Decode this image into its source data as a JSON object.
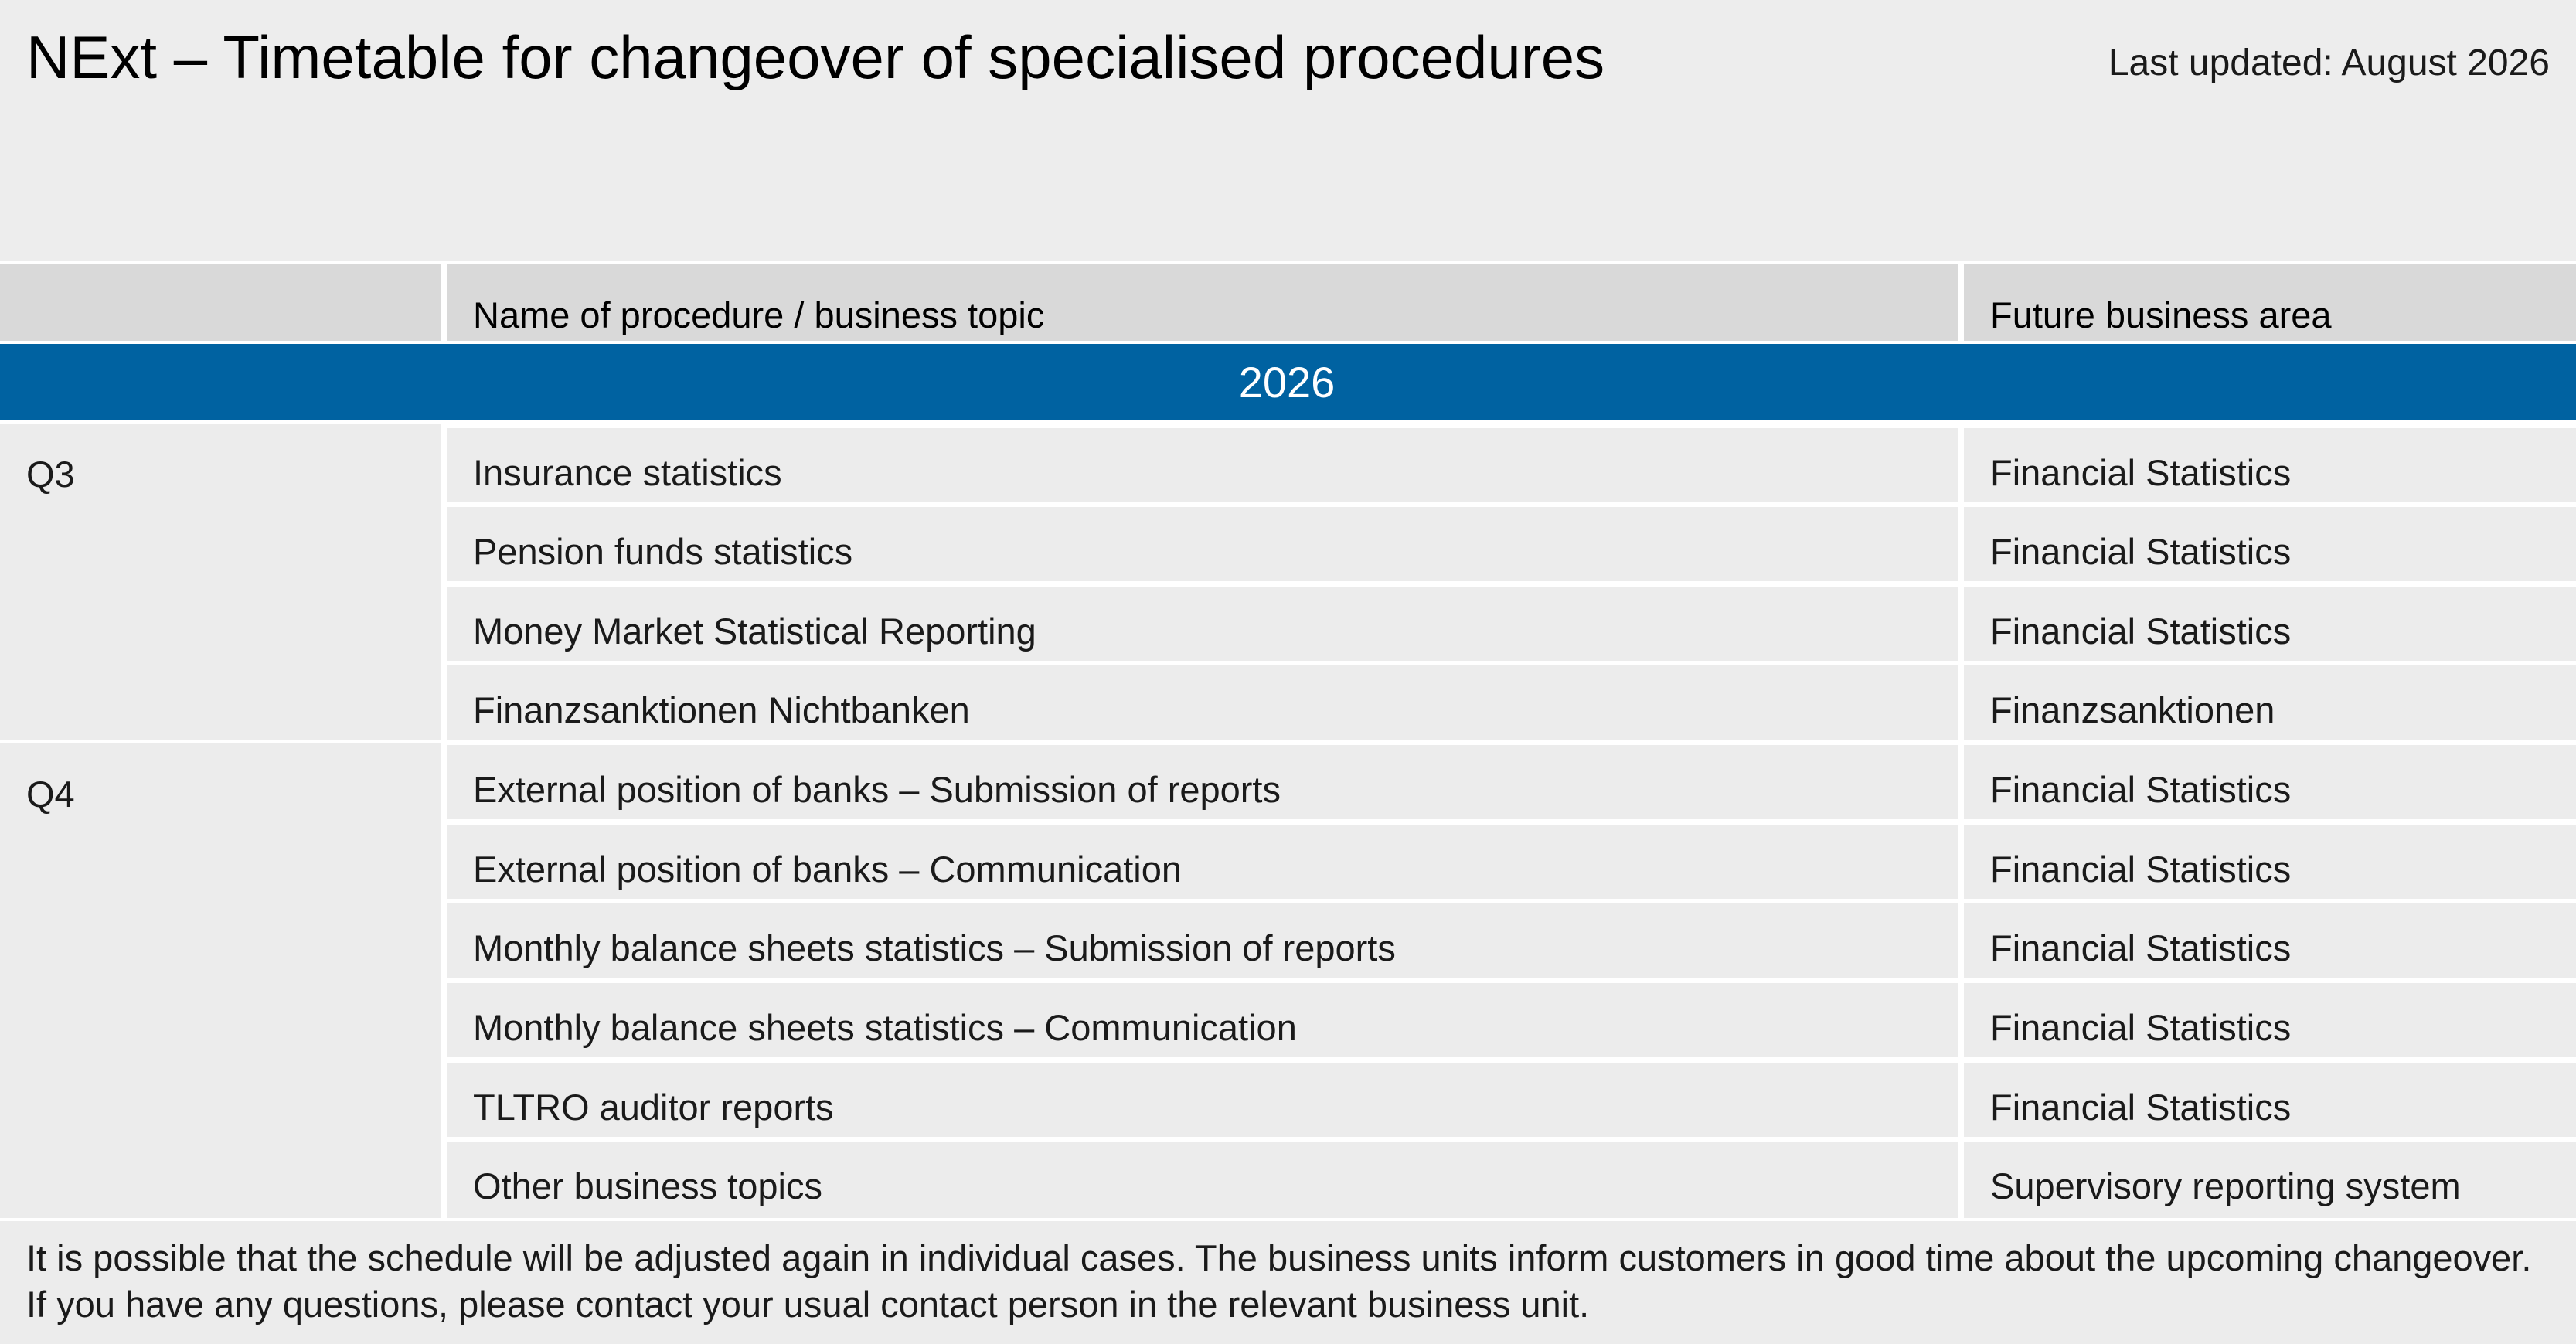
{
  "header": {
    "title": "NExt – Timetable for changeover of specialised procedures",
    "last_updated": "Last updated: August 2026"
  },
  "table": {
    "columns": [
      "",
      "Name of procedure / business topic",
      "Future business area"
    ],
    "year": "2026",
    "groups": [
      {
        "quarter": "Q3",
        "rows": [
          {
            "procedure": "Insurance statistics",
            "area": "Financial Statistics"
          },
          {
            "procedure": "Pension funds statistics",
            "area": "Financial Statistics"
          },
          {
            "procedure": "Money Market Statistical Reporting",
            "area": "Financial Statistics"
          },
          {
            "procedure": "Finanzsanktionen Nichtbanken",
            "area": "Finanzsanktionen"
          }
        ]
      },
      {
        "quarter": "Q4",
        "rows": [
          {
            "procedure": "External position of banks – Submission of reports",
            "area": "Financial Statistics"
          },
          {
            "procedure": "External position of banks – Communication",
            "area": "Financial Statistics"
          },
          {
            "procedure": "Monthly balance sheets statistics – Submission of reports",
            "area": "Financial Statistics"
          },
          {
            "procedure": "Monthly balance sheets statistics – Communication",
            "area": "Financial Statistics"
          },
          {
            "procedure": "TLTRO auditor reports",
            "area": "Financial Statistics"
          },
          {
            "procedure": "Other business topics",
            "area": "Supervisory reporting system"
          }
        ]
      }
    ]
  },
  "footer": {
    "line1": "It is possible that the schedule will be adjusted again in individual cases. The business units inform customers in good time about the upcoming changeover.",
    "line2": "If you have any questions, please contact your usual contact person in the relevant business unit."
  },
  "colors": {
    "accent": "#0062a1",
    "header_bg": "#ededed",
    "row_bg": "#ececec",
    "column_header_bg": "#d9d9d9"
  }
}
